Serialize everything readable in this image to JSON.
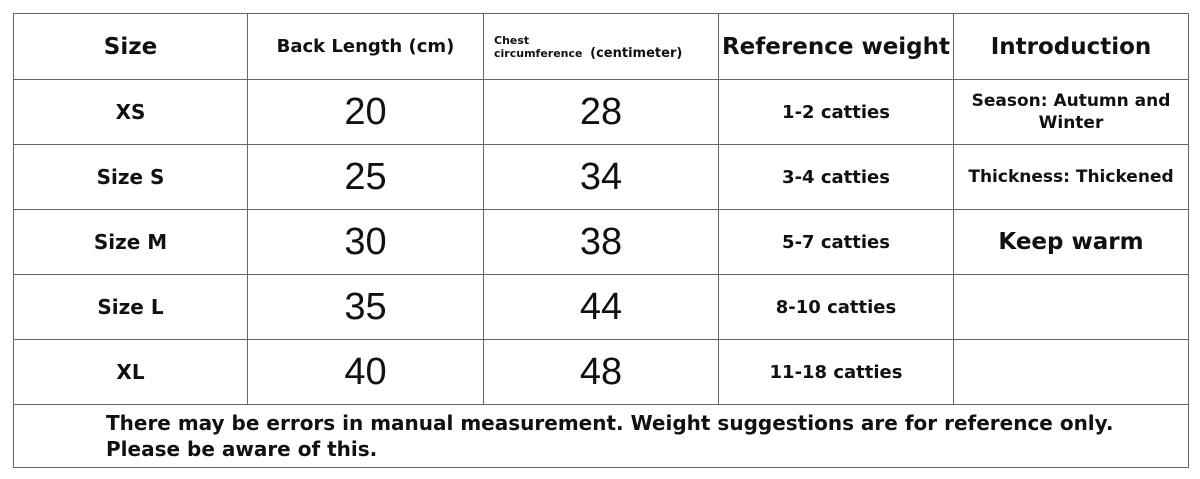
{
  "table": {
    "header": [
      "Size",
      "Back Length (cm)",
      [
        "Chest",
        "circumference",
        "(centimeter)"
      ],
      "Reference weight",
      "Introduction"
    ],
    "rows": [
      [
        "XS",
        20,
        28,
        "1-2 catties",
        "Season: Autumn and Winter"
      ],
      [
        "Size S",
        25,
        34,
        "3-4 catties",
        "Thickness: Thickened"
      ],
      [
        "Size M",
        30,
        38,
        "5-7 catties",
        "Keep warm"
      ],
      [
        "Size L",
        35,
        44,
        "8-10 catties",
        null
      ],
      [
        "XL",
        40,
        48,
        "11-18 catties",
        null
      ]
    ],
    "footer": [
      "There may be errors in manual measurement. Weight suggestions are for reference only.",
      "Please be aware of this."
    ]
  }
}
